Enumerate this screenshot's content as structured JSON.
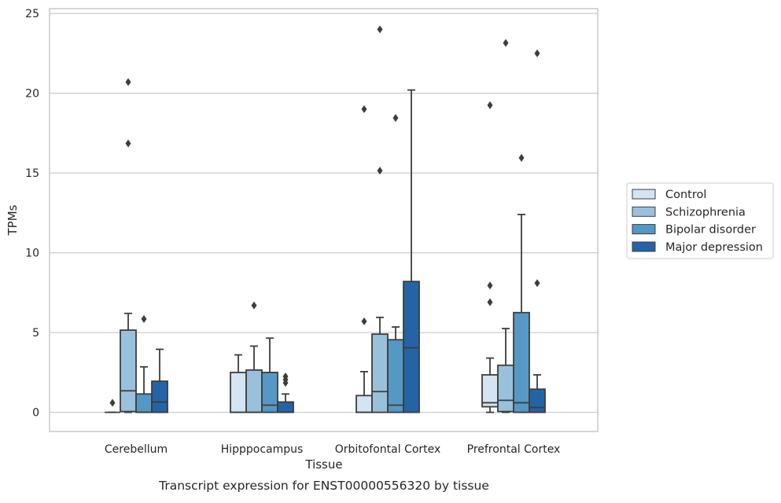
{
  "caption": "Transcript expression for ENST00000556320 by tissue",
  "chart_data": {
    "type": "box",
    "title": "",
    "xlabel": "Tissue",
    "ylabel": "TPMs",
    "ylim": [
      -1.2,
      25.3
    ],
    "yticks": [
      0,
      5,
      10,
      15,
      20,
      25
    ],
    "grid": "horizontal",
    "legend_position": "right",
    "categories": [
      "Cerebellum",
      "Hipppocampus",
      "Orbitofontal Cortex",
      "Prefrontal Cortex"
    ],
    "series": [
      {
        "name": "Control",
        "color": "#d4e4f3",
        "boxes": [
          {
            "whislo": 0,
            "q1": 0,
            "med": 0,
            "q3": 0,
            "whishi": 0,
            "fliers": [
              0.6
            ]
          },
          {
            "whislo": 0,
            "q1": 0,
            "med": 0,
            "q3": 2.5,
            "whishi": 3.6,
            "fliers": []
          },
          {
            "whislo": 0,
            "q1": 0,
            "med": 0,
            "q3": 1.05,
            "whishi": 2.55,
            "fliers": [
              5.7,
              19.0
            ]
          },
          {
            "whislo": 0,
            "q1": 0.35,
            "med": 0.6,
            "q3": 2.35,
            "whishi": 3.4,
            "fliers": [
              6.9,
              7.95,
              19.25
            ]
          }
        ]
      },
      {
        "name": "Schizophrenia",
        "color": "#9ac1dc",
        "boxes": [
          {
            "whislo": 0,
            "q1": 0.05,
            "med": 1.35,
            "q3": 5.15,
            "whishi": 6.2,
            "fliers": [
              16.85,
              20.7
            ]
          },
          {
            "whislo": 0,
            "q1": 0,
            "med": 0,
            "q3": 2.65,
            "whishi": 4.15,
            "fliers": [
              6.7
            ]
          },
          {
            "whislo": 0,
            "q1": 0,
            "med": 1.3,
            "q3": 4.9,
            "whishi": 5.95,
            "fliers": [
              15.15,
              24.0
            ]
          },
          {
            "whislo": 0,
            "q1": 0.05,
            "med": 0.75,
            "q3": 2.95,
            "whishi": 5.25,
            "fliers": [
              23.15
            ]
          }
        ]
      },
      {
        "name": "Bipolar disorder",
        "color": "#5598c6",
        "boxes": [
          {
            "whislo": 0,
            "q1": 0,
            "med": 0,
            "q3": 1.15,
            "whishi": 2.85,
            "fliers": [
              5.85
            ]
          },
          {
            "whislo": 0,
            "q1": 0,
            "med": 0.45,
            "q3": 2.5,
            "whishi": 4.65,
            "fliers": []
          },
          {
            "whislo": 0,
            "q1": 0,
            "med": 0.45,
            "q3": 4.55,
            "whishi": 5.35,
            "fliers": [
              18.45
            ]
          },
          {
            "whislo": 0,
            "q1": 0,
            "med": 0.6,
            "q3": 6.25,
            "whishi": 12.4,
            "fliers": [
              15.95
            ]
          }
        ]
      },
      {
        "name": "Major depression",
        "color": "#2464a6",
        "boxes": [
          {
            "whislo": 0,
            "q1": 0,
            "med": 0.65,
            "q3": 1.95,
            "whishi": 3.95,
            "fliers": []
          },
          {
            "whislo": 0,
            "q1": 0,
            "med": 0,
            "q3": 0.65,
            "whishi": 1.15,
            "fliers": [
              1.85,
              2.05,
              2.25
            ]
          },
          {
            "whislo": 0,
            "q1": 0,
            "med": 4.05,
            "q3": 8.2,
            "whishi": 20.2,
            "fliers": []
          },
          {
            "whislo": 0,
            "q1": 0,
            "med": 0.3,
            "q3": 1.45,
            "whishi": 2.35,
            "fliers": [
              8.1,
              22.5
            ]
          }
        ]
      }
    ]
  }
}
